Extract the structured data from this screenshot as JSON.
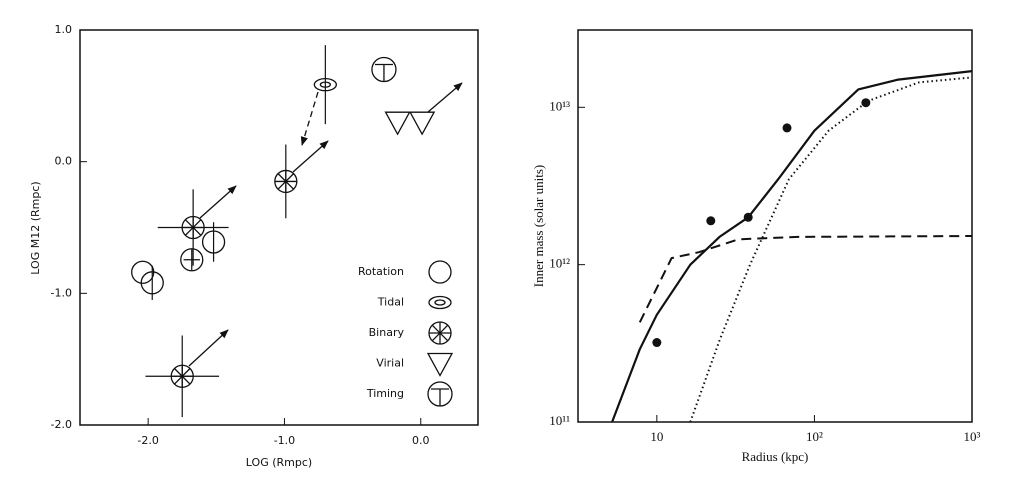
{
  "chart_data": [
    {
      "type": "scatter",
      "xlabel": "LOG (Rmpc)",
      "ylabel": "LOG M12 (Rmpc)",
      "xlim": [
        -2.5,
        0.42
      ],
      "ylim": [
        -2,
        1
      ],
      "xticks": [
        {
          "value": -2,
          "label": "-2.0"
        },
        {
          "value": -1,
          "label": "-1.0"
        },
        {
          "value": 0,
          "label": "0.0"
        }
      ],
      "yticks": [
        {
          "value": -2,
          "label": "-2.0"
        },
        {
          "value": -1,
          "label": "-1.0"
        },
        {
          "value": 0,
          "label": "0.0"
        },
        {
          "value": 1,
          "label": "1.0"
        }
      ],
      "series": [
        {
          "name": "Rotation",
          "marker": "circle",
          "color": "#111111",
          "x": [
            -2.04,
            -1.97,
            -1.68,
            -1.52
          ],
          "values": [
            -0.84,
            -0.92,
            -0.745,
            -0.61
          ],
          "yerr": [
            null,
            0.13,
            0.08,
            0.15
          ],
          "xerr": [
            null,
            null,
            0.06,
            null
          ]
        },
        {
          "name": "Tidal",
          "marker": "ellipse",
          "color": "#111111",
          "x": [
            -0.7
          ],
          "values": [
            0.585
          ],
          "yerr": [
            0.3
          ],
          "xerr": [
            null
          ]
        },
        {
          "name": "Binary",
          "marker": "asterisk-circle",
          "color": "#111111",
          "x": [
            -1.67,
            -0.99,
            -1.75
          ],
          "values": [
            -0.5,
            -0.15,
            -1.63
          ],
          "yerr": [
            0.29,
            0.28,
            0.31
          ],
          "xerr": [
            0.26,
            null,
            0.27
          ]
        },
        {
          "name": "Virial",
          "marker": "triangle-down",
          "color": "#111111",
          "x": [
            -0.17,
            0.01
          ],
          "values": [
            0.3,
            0.3
          ],
          "yerr": [
            null,
            null
          ],
          "xerr": [
            null,
            null
          ]
        },
        {
          "name": "Timing",
          "marker": "t-circle",
          "color": "#111111",
          "x": [
            -0.27
          ],
          "values": [
            0.7
          ],
          "yerr": [
            null
          ],
          "xerr": [
            null
          ]
        }
      ]
    },
    {
      "type": "line",
      "xlabel": "Radius (kpc)",
      "ylabel": "Inner mass (solar units)",
      "log_x": true,
      "log_y": true,
      "xlim": [
        3.16,
        1000
      ],
      "ylim": [
        100000000000.0,
        31000000000000.0
      ],
      "xticks": [
        10,
        {
          "value": 100,
          "label": "10²"
        },
        {
          "value": 1000,
          "label": "10³"
        }
      ],
      "yticks": [
        {
          "value": 100000000000.0,
          "label": "10¹¹"
        },
        {
          "value": 1000000000000.0,
          "label": "10¹²"
        },
        {
          "value": 10000000000000.0,
          "label": "10¹³"
        }
      ],
      "series": [
        {
          "style": "solid",
          "color": "#111111",
          "x": [
            5.2,
            7.8,
            10,
            16.3,
            25,
            38,
            59,
            100,
            190,
            340,
            1000
          ],
          "values": [
            100000000000.0,
            290000000000.0,
            480000000000.0,
            1000000000000.0,
            1500000000000.0,
            2000000000000.0,
            3500000000000.0,
            7100000000000.0,
            13000000000000.0,
            15000000000000.0,
            17000000000000.0
          ]
        },
        {
          "style": "dashed",
          "color": "#111111",
          "x": [
            7.8,
            12.4,
            18.5,
            33,
            79,
            1000
          ],
          "values": [
            430000000000.0,
            1100000000000.0,
            1200000000000.0,
            1450000000000.0,
            1500000000000.0,
            1520000000000.0
          ]
        },
        {
          "style": "dotted",
          "color": "#111111",
          "x": [
            16.3,
            25,
            39,
            69,
            123,
            220,
            460,
            1000
          ],
          "values": [
            100000000000.0,
            330000000000.0,
            1000000000000.0,
            3500000000000.0,
            7100000000000.0,
            11000000000000.0,
            14400000000000.0,
            15500000000000.0
          ]
        },
        {
          "style": "markers",
          "color": "#111111",
          "x": [
            10,
            22,
            38,
            67,
            212
          ],
          "values": [
            320000000000.0,
            1900000000000.0,
            2000000000000.0,
            7400000000000.0,
            10700000000000.0
          ]
        }
      ]
    }
  ]
}
